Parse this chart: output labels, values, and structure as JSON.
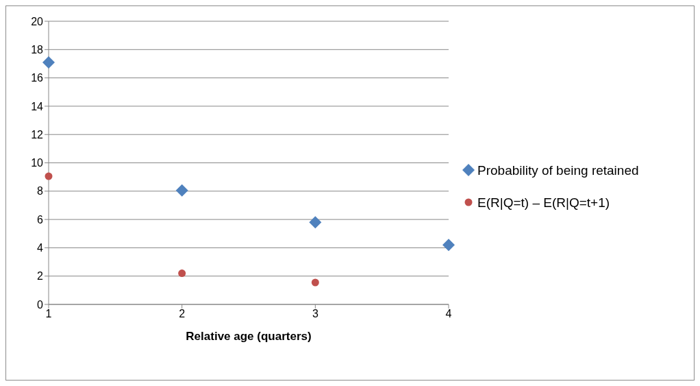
{
  "chart_data": {
    "type": "scatter",
    "xlabel": "Relative age (quarters)",
    "x": [
      1,
      2,
      3,
      4
    ],
    "series": [
      {
        "name": "Probability of being retained",
        "color": "#4f81bd",
        "marker": "diamond",
        "values": [
          17.1,
          8.05,
          5.8,
          4.2
        ]
      },
      {
        "name": "E(R|Q=t) – E(R|Q=t+1)",
        "color": "#c0504d",
        "marker": "circle",
        "values": [
          9.05,
          2.2,
          1.55,
          null
        ]
      }
    ],
    "xlim": [
      1,
      4
    ],
    "xticks": [
      1,
      2,
      3,
      4
    ],
    "ylim": [
      0,
      20
    ],
    "yticks": [
      0,
      2,
      4,
      6,
      8,
      10,
      12,
      14,
      16,
      18,
      20
    ],
    "grid": "y",
    "legend": "right"
  }
}
